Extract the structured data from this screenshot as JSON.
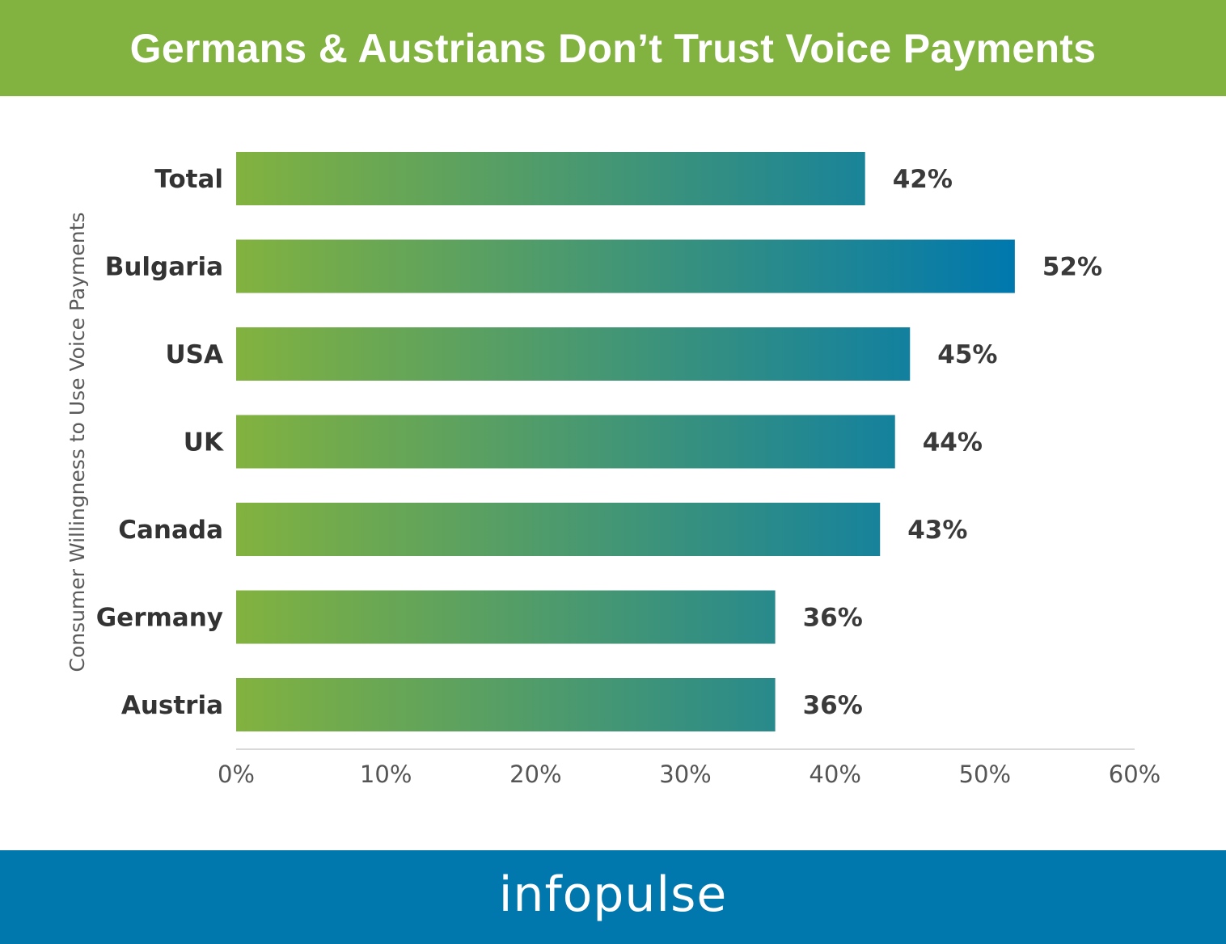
{
  "header": {
    "title": "Germans & Austrians Don’t Trust Voice Payments",
    "background": "#82b23f"
  },
  "footer": {
    "brand": "infopulse",
    "background": "#0078ae"
  },
  "chart_data": {
    "type": "bar",
    "orientation": "horizontal",
    "title": "Germans & Austrians Don’t Trust Voice Payments",
    "ylabel": "Consumer Willingness to Use Voice Payments",
    "xlabel": "",
    "categories": [
      "Total",
      "Bulgaria",
      "USA",
      "UK",
      "Canada",
      "Germany",
      "Austria"
    ],
    "values": [
      42,
      52,
      45,
      44,
      43,
      36,
      36
    ],
    "value_labels": [
      "42%",
      "52%",
      "45%",
      "44%",
      "43%",
      "36%",
      "36%"
    ],
    "xlim": [
      0,
      60
    ],
    "xticks": [
      0,
      10,
      20,
      30,
      40,
      50,
      60
    ],
    "xtick_labels": [
      "0%",
      "10%",
      "20%",
      "30%",
      "40%",
      "50%",
      "60%"
    ],
    "grid": false,
    "legend": "none",
    "bar_gradient": [
      "#82b23f",
      "#0078ae"
    ]
  }
}
